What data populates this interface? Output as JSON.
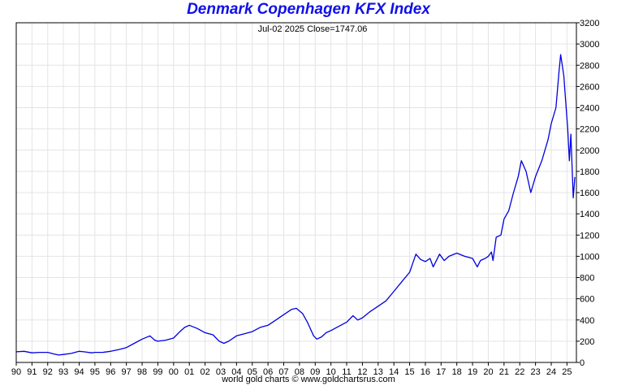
{
  "chart_data": {
    "type": "line",
    "title": "Denmark Copenhagen KFX Index",
    "subtitle": "Jul-02  2025   Close=1747.06",
    "footer": "world gold charts © www.goldchartsrus.com",
    "xlabel": "",
    "ylabel": "",
    "x_tick_labels": [
      "90",
      "91",
      "92",
      "93",
      "94",
      "95",
      "96",
      "97",
      "98",
      "99",
      "00",
      "01",
      "02",
      "03",
      "04",
      "05",
      "06",
      "07",
      "08",
      "09",
      "10",
      "11",
      "12",
      "13",
      "14",
      "15",
      "16",
      "17",
      "18",
      "19",
      "20",
      "21",
      "22",
      "23",
      "24",
      "25"
    ],
    "y_tick_labels": [
      "0",
      "200",
      "400",
      "600",
      "800",
      "1000",
      "1200",
      "1400",
      "1600",
      "1800",
      "2000",
      "2200",
      "2400",
      "2600",
      "2800",
      "3000",
      "3200"
    ],
    "ylim": [
      0,
      3200
    ],
    "xlim": [
      1990.0,
      2025.6
    ],
    "grid": true,
    "y_axis_side": "right",
    "line_color": "#0000e0",
    "series": [
      {
        "x": [
          1990.0,
          1990.5,
          1991.0,
          1991.5,
          1992.0,
          1992.4,
          1992.7,
          1993.0,
          1993.5,
          1994.0,
          1994.3,
          1994.8,
          1995.0,
          1995.5,
          1996.0,
          1996.5,
          1997.0,
          1997.5,
          1998.0,
          1998.5,
          1998.8,
          1999.0,
          1999.5,
          2000.0,
          2000.4,
          2000.7,
          2001.0,
          2001.5,
          2002.0,
          2002.5,
          2002.9,
          2003.2,
          2003.5,
          2004.0,
          2004.5,
          2005.0,
          2005.5,
          2006.0,
          2006.5,
          2007.0,
          2007.5,
          2007.8,
          2008.2,
          2008.5,
          2008.9,
          2009.1,
          2009.4,
          2009.7,
          2010.0,
          2010.5,
          2011.0,
          2011.4,
          2011.7,
          2012.0,
          2012.5,
          2013.0,
          2013.5,
          2014.0,
          2014.5,
          2015.0,
          2015.4,
          2015.7,
          2016.0,
          2016.3,
          2016.5,
          2016.9,
          2017.2,
          2017.5,
          2018.0,
          2018.5,
          2019.0,
          2019.3,
          2019.5,
          2019.8,
          2020.0,
          2020.2,
          2020.3,
          2020.5,
          2020.8,
          2021.0,
          2021.3,
          2021.6,
          2021.9,
          2022.1,
          2022.4,
          2022.7,
          2023.0,
          2023.4,
          2023.8,
          2024.0,
          2024.3,
          2024.5,
          2024.6,
          2024.8,
          2024.9,
          2025.05,
          2025.15,
          2025.25,
          2025.4,
          2025.5
        ],
        "y": [
          100,
          105,
          90,
          95,
          95,
          80,
          70,
          75,
          85,
          105,
          100,
          90,
          95,
          95,
          105,
          120,
          140,
          180,
          220,
          250,
          210,
          200,
          210,
          230,
          290,
          330,
          350,
          320,
          280,
          260,
          200,
          180,
          200,
          250,
          270,
          290,
          330,
          350,
          400,
          450,
          500,
          510,
          460,
          380,
          250,
          220,
          240,
          280,
          300,
          340,
          380,
          440,
          400,
          420,
          480,
          530,
          580,
          670,
          760,
          850,
          1020,
          970,
          950,
          980,
          900,
          1020,
          960,
          1000,
          1030,
          1000,
          980,
          900,
          960,
          980,
          1000,
          1040,
          960,
          1180,
          1200,
          1350,
          1430,
          1600,
          1750,
          1900,
          1800,
          1600,
          1750,
          1900,
          2100,
          2250,
          2400,
          2750,
          2900,
          2700,
          2500,
          2200,
          1900,
          2150,
          1550,
          1747
        ]
      }
    ]
  }
}
